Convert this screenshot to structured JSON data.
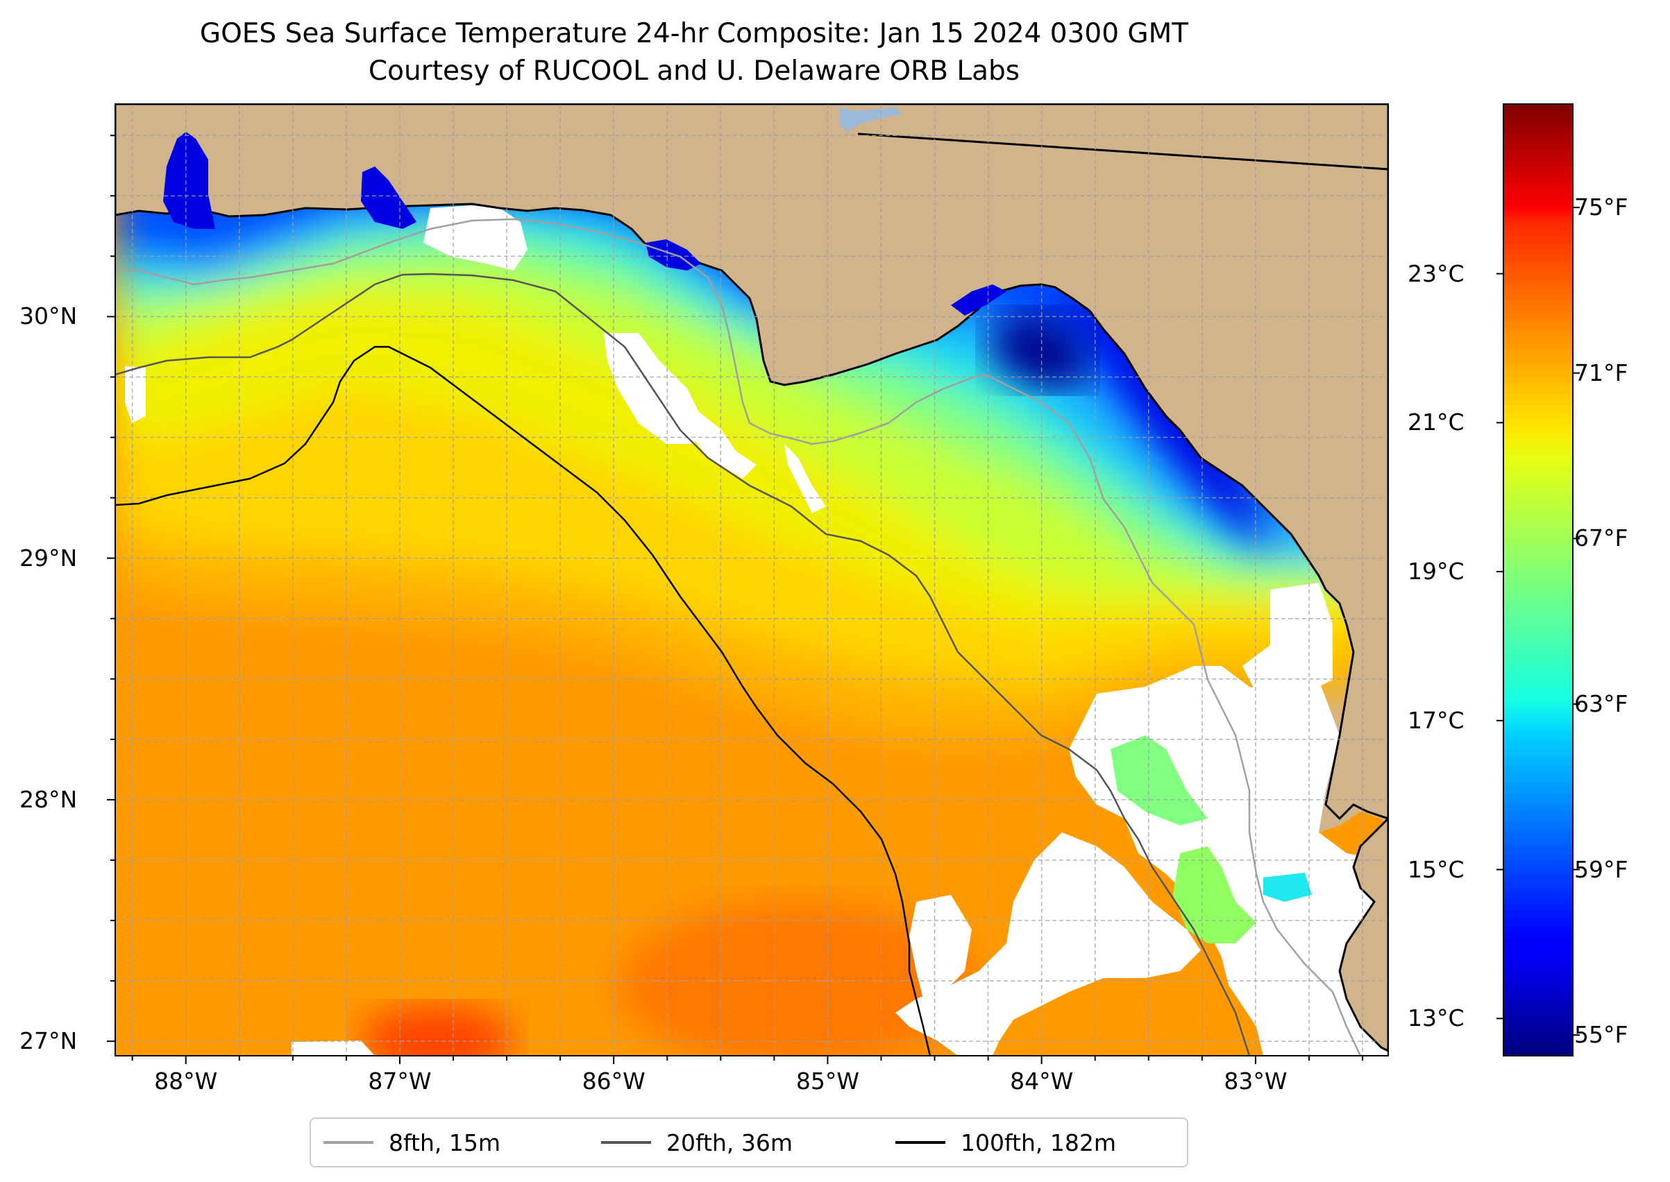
{
  "title": {
    "line1": "GOES Sea Surface Temperature 24-hr Composite: Jan 15 2024 0300 GMT",
    "line2": "Courtesy of RUCOOL and U. Delaware ORB Labs"
  },
  "map": {
    "lat_ticks": [
      {
        "label": "30°N",
        "value": 30
      },
      {
        "label": "29°N",
        "value": 29
      },
      {
        "label": "28°N",
        "value": 28
      },
      {
        "label": "27°N",
        "value": 27
      }
    ],
    "lon_ticks": [
      {
        "label": "88°W",
        "value": -88
      },
      {
        "label": "87°W",
        "value": -87
      },
      {
        "label": "86°W",
        "value": -86
      },
      {
        "label": "85°W",
        "value": -85
      },
      {
        "label": "84°W",
        "value": -84
      },
      {
        "label": "83°W",
        "value": -83
      }
    ],
    "extent": {
      "lon_min": -88.33,
      "lon_max": -82.38,
      "lat_min": 26.94,
      "lat_max": 30.88
    },
    "colors": {
      "land": "#d2b48c",
      "no_data": "#ffffff",
      "gridline": "#a0a0a0",
      "lake": "#9ab8d8",
      "coastline": "#000000"
    }
  },
  "colorbar": {
    "colormap": "jet",
    "range_f": [
      54.5,
      77.5
    ],
    "celsius_ticks": [
      {
        "label": "23°C",
        "value": 23
      },
      {
        "label": "21°C",
        "value": 21
      },
      {
        "label": "19°C",
        "value": 19
      },
      {
        "label": "17°C",
        "value": 17
      },
      {
        "label": "15°C",
        "value": 15
      },
      {
        "label": "13°C",
        "value": 13
      }
    ],
    "fahrenheit_ticks": [
      {
        "label": "75°F",
        "value": 75
      },
      {
        "label": "71°F",
        "value": 71
      },
      {
        "label": "67°F",
        "value": 67
      },
      {
        "label": "63°F",
        "value": 63
      },
      {
        "label": "59°F",
        "value": 59
      },
      {
        "label": "55°F",
        "value": 55
      }
    ]
  },
  "legend": {
    "items": [
      {
        "label": "8fth, 15m",
        "color": "#a0a0a0"
      },
      {
        "label": "20fth, 36m",
        "color": "#555555"
      },
      {
        "label": "100fth, 182m",
        "color": "#000000"
      }
    ]
  }
}
